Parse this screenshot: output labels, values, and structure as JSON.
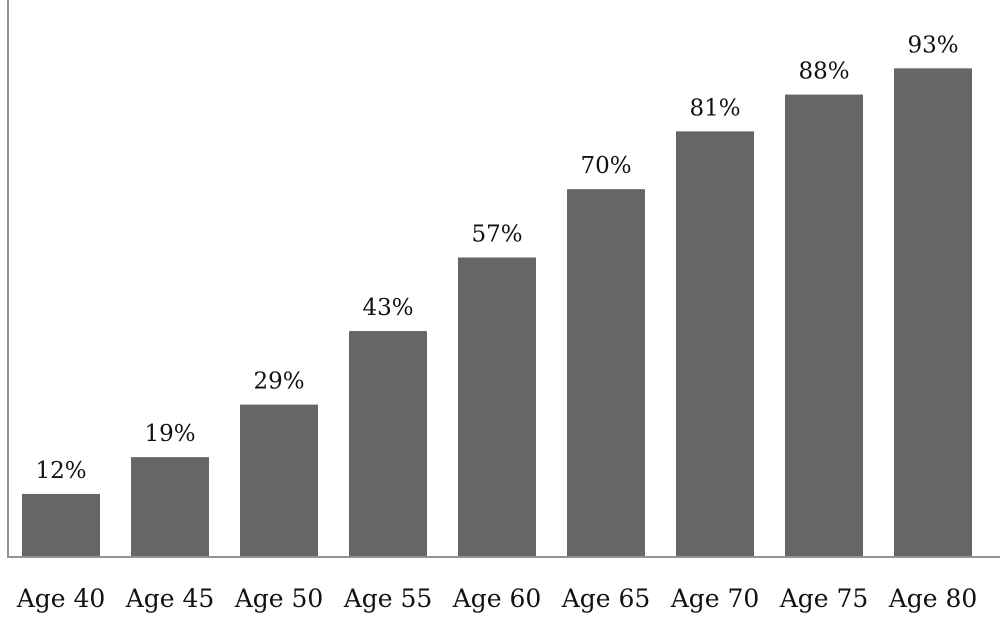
{
  "chart_data": {
    "type": "bar",
    "categories": [
      "Age 40",
      "Age 45",
      "Age 50",
      "Age 55",
      "Age 60",
      "Age 65",
      "Age 70",
      "Age 75",
      "Age 80"
    ],
    "values": [
      12,
      19,
      29,
      43,
      57,
      70,
      81,
      88,
      93
    ],
    "data_labels": [
      "12%",
      "19%",
      "29%",
      "43%",
      "57%",
      "70%",
      "81%",
      "88%",
      "93%"
    ],
    "title": "",
    "xlabel": "",
    "ylabel": "",
    "ylim": [
      0,
      106
    ],
    "grid": false,
    "legend": "none",
    "bar_color": "#666666",
    "axis_color": "#8c9499"
  }
}
